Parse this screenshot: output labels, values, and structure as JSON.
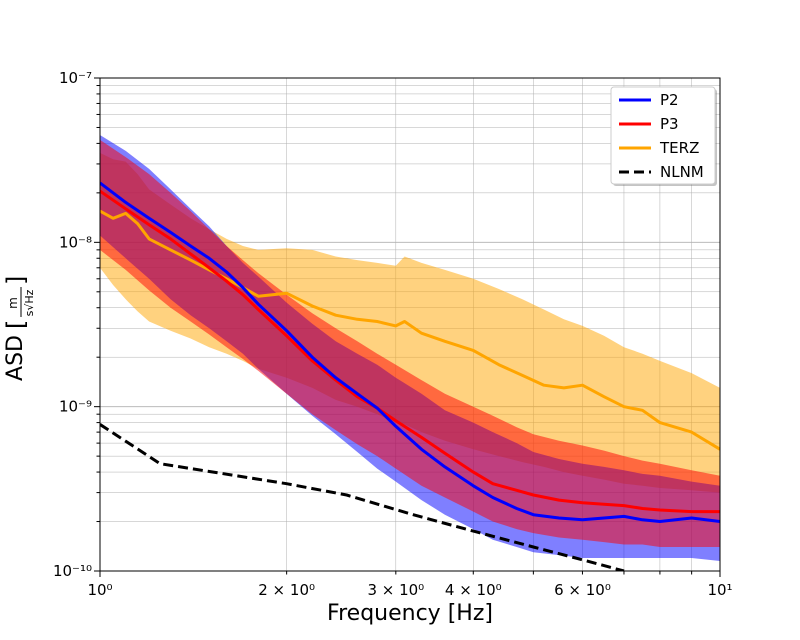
{
  "chart_data": {
    "type": "line",
    "xscale": "log",
    "yscale": "log",
    "xlim": [
      1,
      10
    ],
    "ylim": [
      1e-10,
      1e-07
    ],
    "xlabel": "Frequency [Hz]",
    "ylabel": "ASD",
    "ylabel_unit": {
      "numerator": "m",
      "denominator": "s√Hz"
    },
    "grid": true,
    "legend_position": "top-right",
    "x_tick_labels": [
      {
        "value": 1,
        "label": "10⁰"
      },
      {
        "value": 2,
        "label": "2 × 10⁰"
      },
      {
        "value": 3,
        "label": "3 × 10⁰"
      },
      {
        "value": 4,
        "label": "4 × 10⁰"
      },
      {
        "value": 6,
        "label": "6 × 10⁰"
      },
      {
        "value": 10,
        "label": "10¹"
      }
    ],
    "y_tick_labels": [
      {
        "value": 1e-10,
        "label": "10⁻¹⁰"
      },
      {
        "value": 1e-09,
        "label": "10⁻⁹"
      },
      {
        "value": 1e-08,
        "label": "10⁻⁸"
      },
      {
        "value": 1e-07,
        "label": "10⁻⁷"
      }
    ],
    "series": [
      {
        "name": "P2",
        "color": "#0000ff",
        "style": "solid",
        "x": [
          1.0,
          1.1,
          1.2,
          1.3,
          1.4,
          1.5,
          1.6,
          1.7,
          1.8,
          2.0,
          2.2,
          2.4,
          2.6,
          2.8,
          3.0,
          3.3,
          3.6,
          4.0,
          4.3,
          4.7,
          5.0,
          5.5,
          6.0,
          6.5,
          7.0,
          7.5,
          8.0,
          9.0,
          10.0
        ],
        "y": [
          2.3e-08,
          1.75e-08,
          1.4e-08,
          1.15e-08,
          9.5e-09,
          8e-09,
          6.6e-09,
          5.3e-09,
          4.2e-09,
          2.9e-09,
          2e-09,
          1.5e-09,
          1.2e-09,
          9.8e-10,
          7.6e-10,
          5.5e-10,
          4.3e-10,
          3.3e-10,
          2.8e-10,
          2.4e-10,
          2.2e-10,
          2.1e-10,
          2.05e-10,
          2.1e-10,
          2.15e-10,
          2.05e-10,
          2e-10,
          2.1e-10,
          2e-10
        ],
        "band_low": [
          1.1e-08,
          8e-09,
          6e-09,
          4.5e-09,
          3.6e-09,
          3e-09,
          2.5e-09,
          2.1e-09,
          1.7e-09,
          1.2e-09,
          8.8e-10,
          6.8e-10,
          5.3e-10,
          4.2e-10,
          3.5e-10,
          2.7e-10,
          2.2e-10,
          1.8e-10,
          1.55e-10,
          1.4e-10,
          1.3e-10,
          1.25e-10,
          1.2e-10,
          1.2e-10,
          1.2e-10,
          1.2e-10,
          1.2e-10,
          1.2e-10,
          1.15e-10
        ],
        "band_high": [
          4.5e-08,
          3.6e-08,
          2.8e-08,
          2.1e-08,
          1.6e-08,
          1.25e-08,
          9.5e-09,
          7.5e-09,
          6.2e-09,
          4.3e-09,
          3.2e-09,
          2.5e-09,
          2.1e-09,
          1.8e-09,
          1.5e-09,
          1.2e-09,
          9.5e-10,
          8e-10,
          7e-10,
          6e-10,
          5.3e-10,
          4.8e-10,
          4.5e-10,
          4.3e-10,
          4.1e-10,
          3.9e-10,
          3.8e-10,
          3.5e-10,
          3.3e-10
        ]
      },
      {
        "name": "P3",
        "color": "#ff0000",
        "style": "solid",
        "x": [
          1.0,
          1.1,
          1.2,
          1.3,
          1.4,
          1.5,
          1.6,
          1.7,
          1.8,
          2.0,
          2.2,
          2.4,
          2.6,
          2.8,
          3.0,
          3.3,
          3.6,
          4.0,
          4.3,
          4.7,
          5.0,
          5.5,
          6.0,
          6.5,
          7.0,
          7.5,
          8.0,
          9.0,
          10.0
        ],
        "y": [
          2.05e-08,
          1.6e-08,
          1.28e-08,
          1.05e-08,
          8.5e-09,
          7e-09,
          5.8e-09,
          4.8e-09,
          3.9e-09,
          2.7e-09,
          1.9e-09,
          1.45e-09,
          1.15e-09,
          9.8e-10,
          8.2e-10,
          6.5e-10,
          5.2e-10,
          4e-10,
          3.4e-10,
          3.1e-10,
          2.9e-10,
          2.7e-10,
          2.6e-10,
          2.55e-10,
          2.5e-10,
          2.4e-10,
          2.35e-10,
          2.3e-10,
          2.3e-10
        ],
        "band_low": [
          9e-09,
          6.8e-09,
          5.1e-09,
          4e-09,
          3.3e-09,
          2.75e-09,
          2.3e-09,
          1.95e-09,
          1.65e-09,
          1.2e-09,
          9e-10,
          7.2e-10,
          5.9e-10,
          5e-10,
          4.2e-10,
          3.3e-10,
          2.8e-10,
          2.3e-10,
          2e-10,
          1.8e-10,
          1.7e-10,
          1.6e-10,
          1.55e-10,
          1.5e-10,
          1.45e-10,
          1.45e-10,
          1.4e-10,
          1.4e-10,
          1.4e-10
        ],
        "band_high": [
          4.2e-08,
          3.3e-08,
          2.6e-08,
          2e-08,
          1.55e-08,
          1.2e-08,
          9.5e-09,
          7.8e-09,
          6.5e-09,
          4.8e-09,
          3.7e-09,
          3e-09,
          2.5e-09,
          2.1e-09,
          1.8e-09,
          1.45e-09,
          1.2e-09,
          1e-09,
          8.8e-10,
          7.5e-10,
          6.8e-10,
          6.2e-10,
          5.8e-10,
          5.4e-10,
          5e-10,
          4.7e-10,
          4.5e-10,
          4.1e-10,
          3.8e-10
        ]
      },
      {
        "name": "TERZ",
        "color": "#ffa500",
        "style": "solid",
        "x": [
          1.0,
          1.05,
          1.1,
          1.15,
          1.2,
          1.3,
          1.4,
          1.5,
          1.6,
          1.7,
          1.8,
          2.0,
          2.2,
          2.4,
          2.6,
          2.8,
          3.0,
          3.1,
          3.3,
          3.6,
          4.0,
          4.4,
          4.8,
          5.2,
          5.6,
          6.0,
          6.5,
          7.0,
          7.5,
          8.0,
          9.0,
          10.0
        ],
        "y": [
          1.55e-08,
          1.4e-08,
          1.5e-08,
          1.3e-08,
          1.05e-08,
          9e-09,
          7.8e-09,
          6.8e-09,
          6e-09,
          5.3e-09,
          4.7e-09,
          4.9e-09,
          4.1e-09,
          3.6e-09,
          3.4e-09,
          3.3e-09,
          3.1e-09,
          3.3e-09,
          2.8e-09,
          2.5e-09,
          2.2e-09,
          1.8e-09,
          1.55e-09,
          1.35e-09,
          1.3e-09,
          1.35e-09,
          1.15e-09,
          1e-09,
          9.5e-10,
          8e-10,
          7e-10,
          5.5e-10
        ],
        "band_low": [
          7e-09,
          5.5e-09,
          4.5e-09,
          3.8e-09,
          3.3e-09,
          2.9e-09,
          2.6e-09,
          2.3e-09,
          2.1e-09,
          1.9e-09,
          1.7e-09,
          1.5e-09,
          1.3e-09,
          1.1e-09,
          1e-09,
          9e-10,
          8e-10,
          7.8e-10,
          7e-10,
          6.2e-10,
          5.5e-10,
          5e-10,
          4.6e-10,
          4.3e-10,
          4e-10,
          3.8e-10,
          3.6e-10,
          3.4e-10,
          3.3e-10,
          3.2e-10,
          3.1e-10,
          3e-10
        ],
        "band_high": [
          3.5e-08,
          3.2e-08,
          3.1e-08,
          2.6e-08,
          2.1e-08,
          1.7e-08,
          1.4e-08,
          1.2e-08,
          1.05e-08,
          9.5e-09,
          9e-09,
          9.2e-09,
          9e-09,
          8.2e-09,
          7.8e-09,
          7.5e-09,
          7.2e-09,
          8.2e-09,
          7.5e-09,
          6.8e-09,
          6e-09,
          5.2e-09,
          4.5e-09,
          3.9e-09,
          3.4e-09,
          3.1e-09,
          2.7e-09,
          2.3e-09,
          2.1e-09,
          1.9e-09,
          1.6e-09,
          1.3e-09
        ]
      },
      {
        "name": "NLNM",
        "color": "#000000",
        "style": "dashed",
        "x": [
          1.0,
          1.25,
          2.0,
          2.5,
          3.2,
          4.0,
          5.0,
          6.0,
          7.0
        ],
        "y": [
          7.8e-10,
          4.5e-10,
          3.4e-10,
          2.9e-10,
          2.2e-10,
          1.75e-10,
          1.4e-10,
          1.17e-10,
          1e-10
        ]
      }
    ]
  }
}
